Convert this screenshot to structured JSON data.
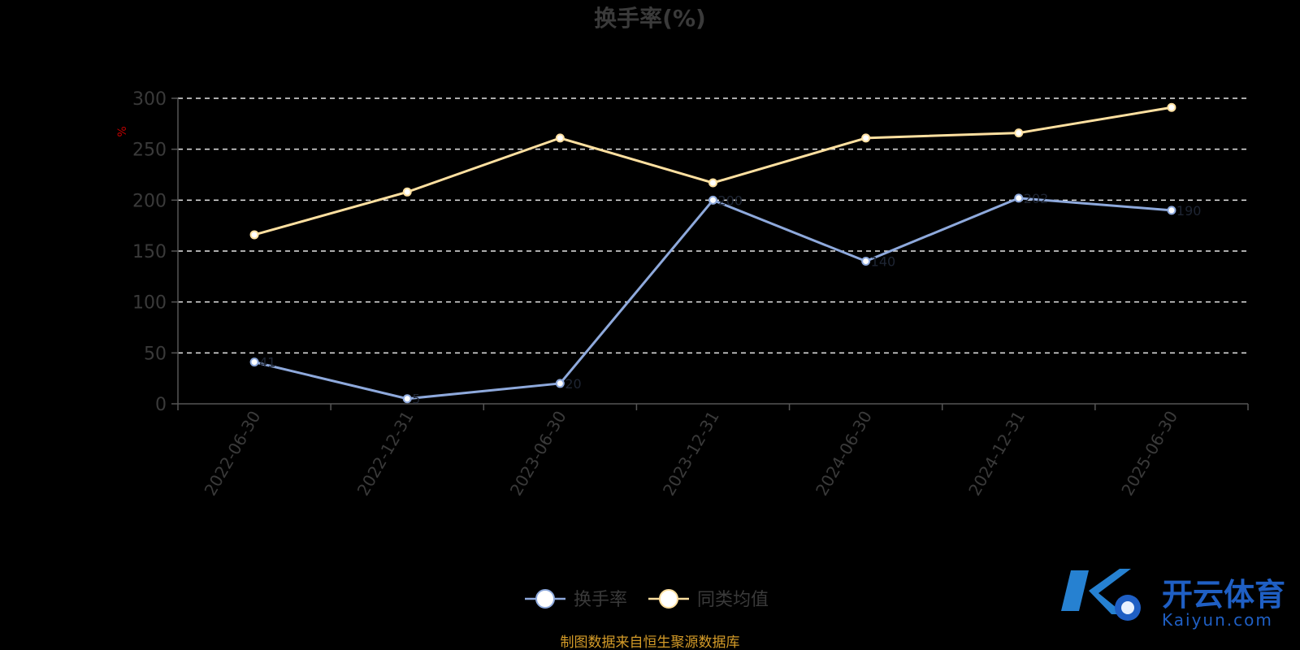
{
  "chart_data": {
    "type": "line",
    "title": "换手率(%)",
    "ylabel": "%",
    "xlabel": "",
    "categories": [
      "2022-06-30",
      "2022-12-31",
      "2023-06-30",
      "2023-12-31",
      "2024-06-30",
      "2024-12-31",
      "2025-06-30"
    ],
    "ylim": [
      0,
      300
    ],
    "yticks": [
      0,
      50,
      100,
      150,
      200,
      250,
      300
    ],
    "grid": "dashed horizontal",
    "legend_position": "bottom-center",
    "series": [
      {
        "name": "换手率",
        "color": "#8ea9dc",
        "values": [
          41,
          5,
          20,
          200,
          140,
          202,
          190
        ]
      },
      {
        "name": "同类均值",
        "color": "#ffe0a0",
        "values": [
          166,
          208,
          261,
          217,
          261,
          266,
          291
        ]
      }
    ]
  },
  "source_note": "制图数据来自恒生聚源数据库",
  "watermark": {
    "cn": "开云体育",
    "en": "Kaiyun.com"
  }
}
